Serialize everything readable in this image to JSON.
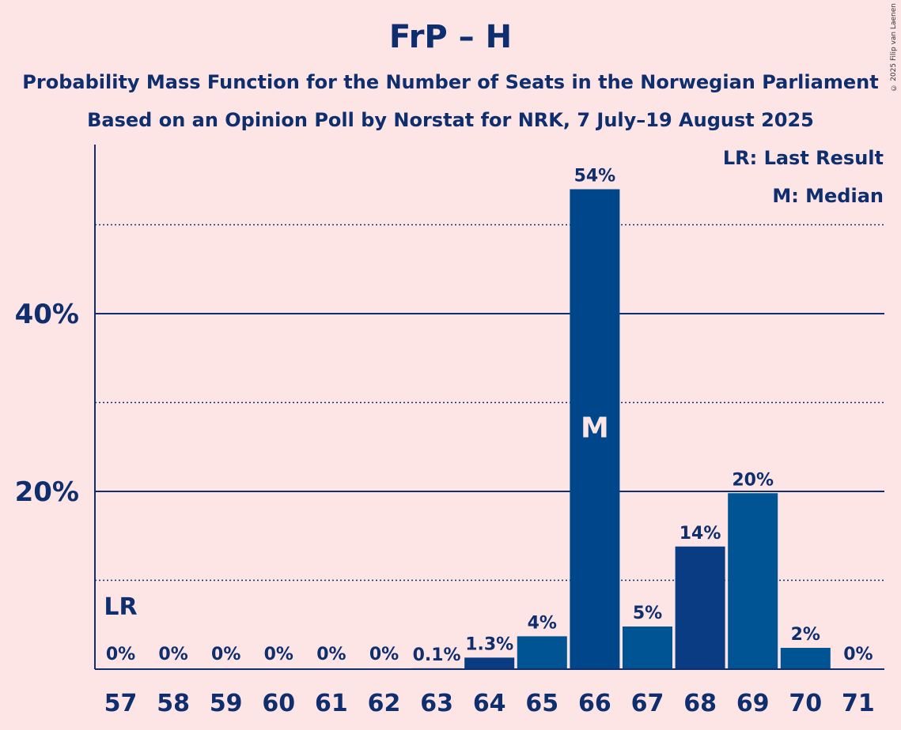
{
  "title": "FrP – H",
  "subtitle1": "Probability Mass Function for the Number of Seats in the Norwegian Parliament",
  "subtitle2": "Based on an Opinion Poll by Norstat for NRK, 7 July–19 August 2025",
  "copyright": "© 2025 Filip van Laenen",
  "legend": {
    "lr": "LR: Last Result",
    "m": "M: Median"
  },
  "colors": {
    "background": "#fde5e6",
    "text": "#0e2e6e",
    "bar_dark": "#00468b",
    "bar_mid": "#0a3c84",
    "bar_light": "#005494"
  },
  "chart_data": {
    "type": "bar",
    "categories": [
      "57",
      "58",
      "59",
      "60",
      "61",
      "62",
      "63",
      "64",
      "65",
      "66",
      "67",
      "68",
      "69",
      "70",
      "71"
    ],
    "values": [
      0,
      0,
      0,
      0,
      0,
      0,
      0.1,
      1.3,
      3.7,
      54,
      4.8,
      13.8,
      19.8,
      2.4,
      0
    ],
    "data_labels": [
      "0%",
      "0%",
      "0%",
      "0%",
      "0%",
      "0%",
      "0.1%",
      "1.3%",
      "4%",
      "54%",
      "5%",
      "14%",
      "20%",
      "2%",
      "0%"
    ],
    "bar_colors": [
      "#00468b",
      "#00468b",
      "#00468b",
      "#00468b",
      "#00468b",
      "#00468b",
      "#00468b",
      "#0a3c84",
      "#005494",
      "#00468b",
      "#005494",
      "#0a3c84",
      "#005494",
      "#005494",
      "#00468b"
    ],
    "y_ticks": [
      {
        "value": 20,
        "label": "20%"
      },
      {
        "value": 40,
        "label": "40%"
      }
    ],
    "dotted_gridlines": [
      10,
      30,
      50
    ],
    "ylim": [
      0,
      59
    ],
    "last_result": {
      "category": "57",
      "label": "LR"
    },
    "median": {
      "category": "66",
      "label": "M"
    },
    "grid": true,
    "legend_position": "top-right"
  }
}
